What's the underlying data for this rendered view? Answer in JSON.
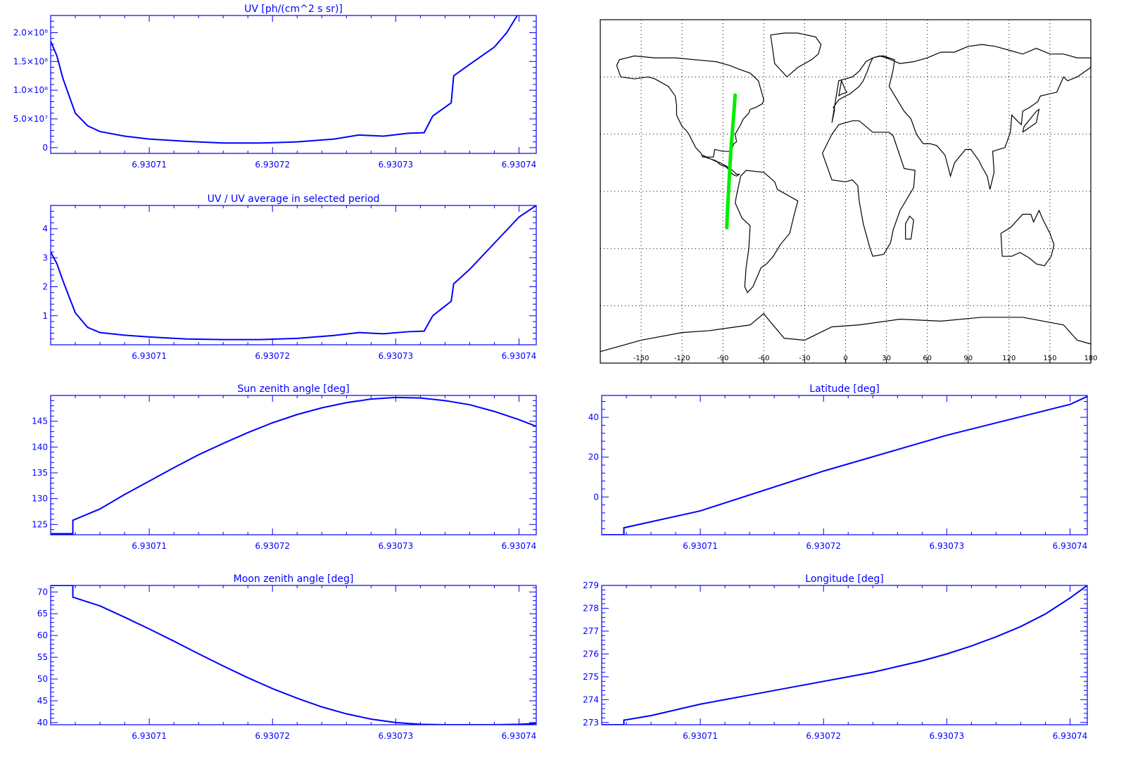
{
  "colors": {
    "axis": "#0000ff",
    "data": "#0000ff",
    "track": "#00ee00",
    "coast": "#000000",
    "grid": "#000000"
  },
  "chart_data": [
    {
      "id": "uv",
      "type": "line",
      "title": "UV [ph/(cm^2 s sr)]",
      "xlim": [
        6.930702,
        6.9307414
      ],
      "ylim": [
        -10000000,
        230000000
      ],
      "x_ticks": [
        6.93071,
        6.93072,
        6.93073,
        6.93074
      ],
      "x_tick_labels": [
        "6.93071",
        "6.93072",
        "6.93073",
        "6.93074"
      ],
      "y_ticks": [
        0,
        50000000,
        100000000,
        150000000,
        200000000
      ],
      "y_tick_labels": [
        "0",
        "5.0×10⁷",
        "1.0×10⁸",
        "1.5×10⁸",
        "2.0×10⁸"
      ],
      "series": [
        {
          "x": [
            6.930702,
            6.9307025,
            6.930703,
            6.930704,
            6.930705,
            6.930706,
            6.930708,
            6.93071,
            6.930713,
            6.930716,
            6.930719,
            6.930722,
            6.930725,
            6.930727,
            6.930729,
            6.930731,
            6.9307323,
            6.930733,
            6.9307345,
            6.9307347,
            6.930736,
            6.930738,
            6.930739,
            6.93074
          ],
          "y": [
            185000000,
            160000000,
            120000000,
            60000000,
            38000000,
            28000000,
            20000000,
            15000000,
            11000000,
            8000000,
            8000000,
            10000000,
            15000000,
            22000000,
            20000000,
            25000000,
            26000000,
            55000000,
            78000000,
            125000000,
            145000000,
            175000000,
            200000000,
            235000000
          ]
        }
      ]
    },
    {
      "id": "uv_ratio",
      "type": "line",
      "title": "UV / UV average in selected period",
      "xlim": [
        6.930702,
        6.9307414
      ],
      "ylim": [
        0,
        4.8
      ],
      "x_ticks": [
        6.93071,
        6.93072,
        6.93073,
        6.93074
      ],
      "x_tick_labels": [
        "6.93071",
        "6.93072",
        "6.93073",
        "6.93074"
      ],
      "y_ticks": [
        1,
        2,
        3,
        4
      ],
      "y_tick_labels": [
        "1",
        "2",
        "3",
        "4"
      ],
      "series": [
        {
          "x": [
            6.930702,
            6.9307025,
            6.930703,
            6.930704,
            6.930705,
            6.930706,
            6.930708,
            6.93071,
            6.930713,
            6.930716,
            6.930719,
            6.930722,
            6.930725,
            6.930727,
            6.930729,
            6.930731,
            6.9307323,
            6.930733,
            6.9307345,
            6.9307347,
            6.930736,
            6.930738,
            6.93074,
            6.9307414
          ],
          "y": [
            3.2,
            2.8,
            2.2,
            1.1,
            0.6,
            0.42,
            0.33,
            0.27,
            0.2,
            0.18,
            0.18,
            0.22,
            0.32,
            0.42,
            0.38,
            0.45,
            0.47,
            1.0,
            1.5,
            2.1,
            2.6,
            3.5,
            4.4,
            4.8
          ]
        }
      ]
    },
    {
      "id": "sza",
      "type": "line",
      "title": "Sun zenith angle [deg]",
      "xlim": [
        6.930702,
        6.9307414
      ],
      "ylim": [
        123,
        150
      ],
      "x_ticks": [
        6.93071,
        6.93072,
        6.93073,
        6.93074
      ],
      "x_tick_labels": [
        "6.93071",
        "6.93072",
        "6.93073",
        "6.93074"
      ],
      "y_ticks": [
        125,
        130,
        135,
        140,
        145
      ],
      "y_tick_labels": [
        "125",
        "130",
        "135",
        "140",
        "145"
      ],
      "series": [
        {
          "x": [
            6.930702,
            6.9307038,
            6.9307038,
            6.930706,
            6.930708,
            6.93071,
            6.930712,
            6.930714,
            6.930716,
            6.930718,
            6.93072,
            6.930722,
            6.930724,
            6.930726,
            6.930728,
            6.93073,
            6.930732,
            6.930734,
            6.930736,
            6.930738,
            6.93074,
            6.9307414
          ],
          "y": [
            123.2,
            123.2,
            125.8,
            128,
            130.8,
            133.4,
            136,
            138.5,
            140.7,
            142.8,
            144.7,
            146.3,
            147.6,
            148.6,
            149.3,
            149.6,
            149.5,
            149.0,
            148.2,
            146.9,
            145.3,
            144.0
          ]
        }
      ]
    },
    {
      "id": "lat",
      "type": "line",
      "title": "Latitude [deg]",
      "xlim": [
        6.930702,
        6.9307414
      ],
      "ylim": [
        -19,
        51
      ],
      "x_ticks": [
        6.93071,
        6.93072,
        6.93073,
        6.93074
      ],
      "x_tick_labels": [
        "6.93071",
        "6.93072",
        "6.93073",
        "6.93074"
      ],
      "y_ticks": [
        0,
        20,
        40
      ],
      "y_tick_labels": [
        "0",
        "20",
        "40"
      ],
      "series": [
        {
          "x": [
            6.930702,
            6.9307038,
            6.9307038,
            6.93071,
            6.93072,
            6.93073,
            6.93074,
            6.9307414
          ],
          "y": [
            -19,
            -19,
            -15.5,
            -7,
            13,
            31,
            46.5,
            50.5
          ]
        }
      ]
    },
    {
      "id": "mza",
      "type": "line",
      "title": "Moon zenith angle [deg]",
      "xlim": [
        6.930702,
        6.9307414
      ],
      "ylim": [
        39.5,
        71.5
      ],
      "x_ticks": [
        6.93071,
        6.93072,
        6.93073,
        6.93074
      ],
      "x_tick_labels": [
        "6.93071",
        "6.93072",
        "6.93073",
        "6.93074"
      ],
      "y_ticks": [
        40,
        45,
        50,
        55,
        60,
        65,
        70
      ],
      "y_tick_labels": [
        "40",
        "45",
        "50",
        "55",
        "60",
        "65",
        "70"
      ],
      "series": [
        {
          "x": [
            6.930702,
            6.9307038,
            6.9307038,
            6.930706,
            6.930708,
            6.93071,
            6.930712,
            6.930714,
            6.930716,
            6.930718,
            6.93072,
            6.930722,
            6.930724,
            6.930726,
            6.930728,
            6.93073,
            6.930732,
            6.930734,
            6.930736,
            6.930738,
            6.93074,
            6.9307414
          ],
          "y": [
            71.5,
            71.5,
            68.8,
            66.8,
            64.2,
            61.5,
            58.7,
            55.8,
            53.0,
            50.3,
            47.8,
            45.6,
            43.6,
            42.0,
            40.8,
            40.0,
            39.6,
            39.5,
            39.5,
            39.5,
            39.6,
            39.8
          ]
        }
      ]
    },
    {
      "id": "lon",
      "type": "line",
      "title": "Longitude [deg]",
      "xlim": [
        6.930702,
        6.9307414
      ],
      "ylim": [
        272.9,
        279.0
      ],
      "x_ticks": [
        6.93071,
        6.93072,
        6.93073,
        6.93074
      ],
      "x_tick_labels": [
        "6.93071",
        "6.93072",
        "6.93073",
        "6.93074"
      ],
      "y_ticks": [
        273,
        274,
        275,
        276,
        277,
        278,
        279
      ],
      "y_tick_labels": [
        "273",
        "274",
        "275",
        "276",
        "277",
        "278",
        "279"
      ],
      "series": [
        {
          "x": [
            6.930702,
            6.9307038,
            6.9307038,
            6.930706,
            6.930708,
            6.93071,
            6.930712,
            6.930714,
            6.930716,
            6.930718,
            6.93072,
            6.930722,
            6.930724,
            6.930726,
            6.930728,
            6.93073,
            6.930732,
            6.930734,
            6.930736,
            6.930738,
            6.93074,
            6.9307414
          ],
          "y": [
            272.9,
            272.9,
            273.1,
            273.3,
            273.55,
            273.8,
            274.0,
            274.2,
            274.4,
            274.6,
            274.8,
            275.0,
            275.2,
            275.45,
            275.7,
            276.0,
            276.35,
            276.75,
            277.2,
            277.75,
            278.45,
            279.0
          ]
        }
      ]
    },
    {
      "id": "map",
      "type": "map",
      "projection": "equirectangular",
      "xlim": [
        -180,
        180
      ],
      "ylim": [
        -90,
        90
      ],
      "x_ticks": [
        -150,
        -120,
        -90,
        -60,
        -30,
        0,
        30,
        60,
        90,
        120,
        150,
        180
      ],
      "x_tick_labels": [
        "-150",
        "-120",
        "-90",
        "-60",
        "-30",
        "0",
        "30",
        "60",
        "90",
        "120",
        "150",
        "180"
      ],
      "grid_lat": [
        -60,
        -30,
        0,
        30,
        60
      ],
      "grid_lon": [
        -150,
        -120,
        -90,
        -60,
        -30,
        0,
        30,
        60,
        90,
        120,
        150
      ],
      "track": {
        "lon": [
          -87.2,
          -86.8,
          -86.2,
          -85.5,
          -84.8,
          -84.0,
          -83.0,
          -82.0,
          -81.0
        ],
        "lat": [
          -19,
          -12,
          -4,
          5,
          14,
          23,
          32,
          41,
          50.5
        ]
      },
      "coastlines": [
        {
          "name": "north-america",
          "lon": [
            -168,
            -165,
            -155,
            -145,
            -140,
            -130,
            -125,
            -124,
            -124,
            -120,
            -117,
            -115,
            -110,
            -106,
            -105,
            -97,
            -96,
            -90,
            -84,
            -82,
            -80,
            -81,
            -77,
            -75,
            -71,
            -70,
            -66,
            -61,
            -60,
            -64,
            -70,
            -78,
            -85,
            -95,
            -110,
            -125,
            -140,
            -155,
            -166,
            -168
          ],
          "lat": [
            66,
            60,
            59,
            60,
            59,
            55,
            50,
            45,
            40,
            34,
            32,
            30,
            23,
            20,
            18,
            18,
            22,
            21,
            21,
            25,
            26,
            30,
            35,
            38,
            41,
            43,
            44,
            46,
            48,
            58,
            62,
            64,
            66,
            68,
            69,
            70,
            70,
            71,
            69,
            66
          ]
        },
        {
          "name": "central-america",
          "lon": [
            -105,
            -96,
            -92,
            -87,
            -83,
            -80,
            -78,
            -80,
            -83,
            -85,
            -88,
            -92,
            -95,
            -99,
            -103,
            -105
          ],
          "lat": [
            19,
            16,
            15,
            13,
            11,
            9,
            9,
            8,
            9,
            11,
            13,
            14,
            16,
            17,
            18,
            19
          ]
        },
        {
          "name": "south-america",
          "lon": [
            -80,
            -77,
            -73,
            -60,
            -52,
            -50,
            -35,
            -38,
            -41,
            -48,
            -53,
            -58,
            -62,
            -65,
            -68,
            -72,
            -74,
            -73,
            -71,
            -70,
            -76,
            -81,
            -80
          ],
          "lat": [
            -2,
            8,
            11,
            10,
            5,
            1,
            -5,
            -13,
            -22,
            -28,
            -34,
            -38,
            -40,
            -45,
            -50,
            -53,
            -50,
            -40,
            -30,
            -18,
            -14,
            -6,
            -2
          ]
        },
        {
          "name": "greenland",
          "lon": [
            -55,
            -45,
            -35,
            -22,
            -18,
            -20,
            -25,
            -35,
            -43,
            -52,
            -55
          ],
          "lat": [
            82,
            83,
            83,
            81,
            77,
            72,
            69,
            65,
            60,
            67,
            82
          ]
        },
        {
          "name": "eurasia",
          "lon": [
            -10,
            -8,
            -9,
            -5,
            0,
            3,
            10,
            13,
            16,
            18,
            20,
            26,
            28,
            36,
            35,
            32,
            43,
            48,
            52,
            57,
            62,
            67,
            73,
            77,
            80,
            88,
            92,
            98,
            100,
            104,
            106,
            109,
            108,
            117,
            121,
            122,
            126,
            129,
            130,
            135,
            141,
            143,
            155,
            160,
            163,
            170,
            180,
            180,
            170,
            160,
            150,
            140,
            130,
            120,
            110,
            100,
            90,
            80,
            70,
            60,
            50,
            40,
            30,
            25,
            20,
            15,
            10,
            5,
            -5,
            -10
          ],
          "lat": [
            36,
            43,
            44,
            48,
            50,
            51,
            55,
            58,
            63,
            67,
            70,
            71,
            71,
            69,
            64,
            55,
            42,
            38,
            30,
            25,
            25,
            24,
            19,
            8,
            15,
            22,
            22,
            16,
            13,
            8,
            1,
            10,
            21,
            23,
            31,
            40,
            37,
            35,
            42,
            44,
            47,
            50,
            52,
            60,
            58,
            60,
            65,
            70,
            70,
            72,
            72,
            75,
            72,
            74,
            76,
            77,
            76,
            73,
            73,
            70,
            68,
            67,
            70,
            71,
            70,
            68,
            63,
            60,
            58,
            36
          ]
        },
        {
          "name": "africa",
          "lon": [
            -17,
            -10,
            -5,
            5,
            10,
            20,
            32,
            35,
            43,
            51,
            50,
            40,
            35,
            33,
            28,
            20,
            18,
            13,
            10,
            9,
            5,
            0,
            -10,
            -17
          ],
          "lat": [
            20,
            30,
            35,
            37,
            37,
            31,
            31,
            29,
            12,
            11,
            2,
            -10,
            -20,
            -27,
            -33,
            -34,
            -30,
            -17,
            -5,
            3,
            6,
            5,
            6,
            20
          ]
        },
        {
          "name": "australia",
          "lon": [
            114,
            121,
            130,
            136,
            138,
            142,
            145,
            150,
            153,
            151,
            146,
            140,
            135,
            128,
            122,
            115,
            114
          ],
          "lat": [
            -22,
            -19,
            -12,
            -12,
            -16,
            -10,
            -15,
            -22,
            -28,
            -34,
            -39,
            -38,
            -35,
            -32,
            -34,
            -34,
            -22
          ]
        },
        {
          "name": "madagascar",
          "lon": [
            44,
            48,
            50,
            47,
            44,
            44
          ],
          "lat": [
            -25,
            -25,
            -15,
            -13,
            -17,
            -25
          ]
        },
        {
          "name": "japan",
          "lon": [
            130,
            134,
            140,
            142,
            140,
            131,
            130
          ],
          "lat": [
            31,
            33,
            36,
            43,
            42,
            34,
            31
          ]
        },
        {
          "name": "uk",
          "lon": [
            -5,
            -3,
            0,
            1,
            -3,
            -5
          ],
          "lat": [
            50,
            58,
            53,
            52,
            51,
            50
          ]
        },
        {
          "name": "antarctica",
          "lon": [
            -180,
            -150,
            -120,
            -100,
            -70,
            -60,
            -58,
            -45,
            -30,
            -10,
            10,
            40,
            70,
            100,
            130,
            160,
            170,
            180
          ],
          "lat": [
            -84,
            -78,
            -74,
            -73,
            -70,
            -64,
            -66,
            -77,
            -78,
            -71,
            -70,
            -67,
            -68,
            -66,
            -66,
            -70,
            -78,
            -80
          ]
        }
      ]
    }
  ]
}
